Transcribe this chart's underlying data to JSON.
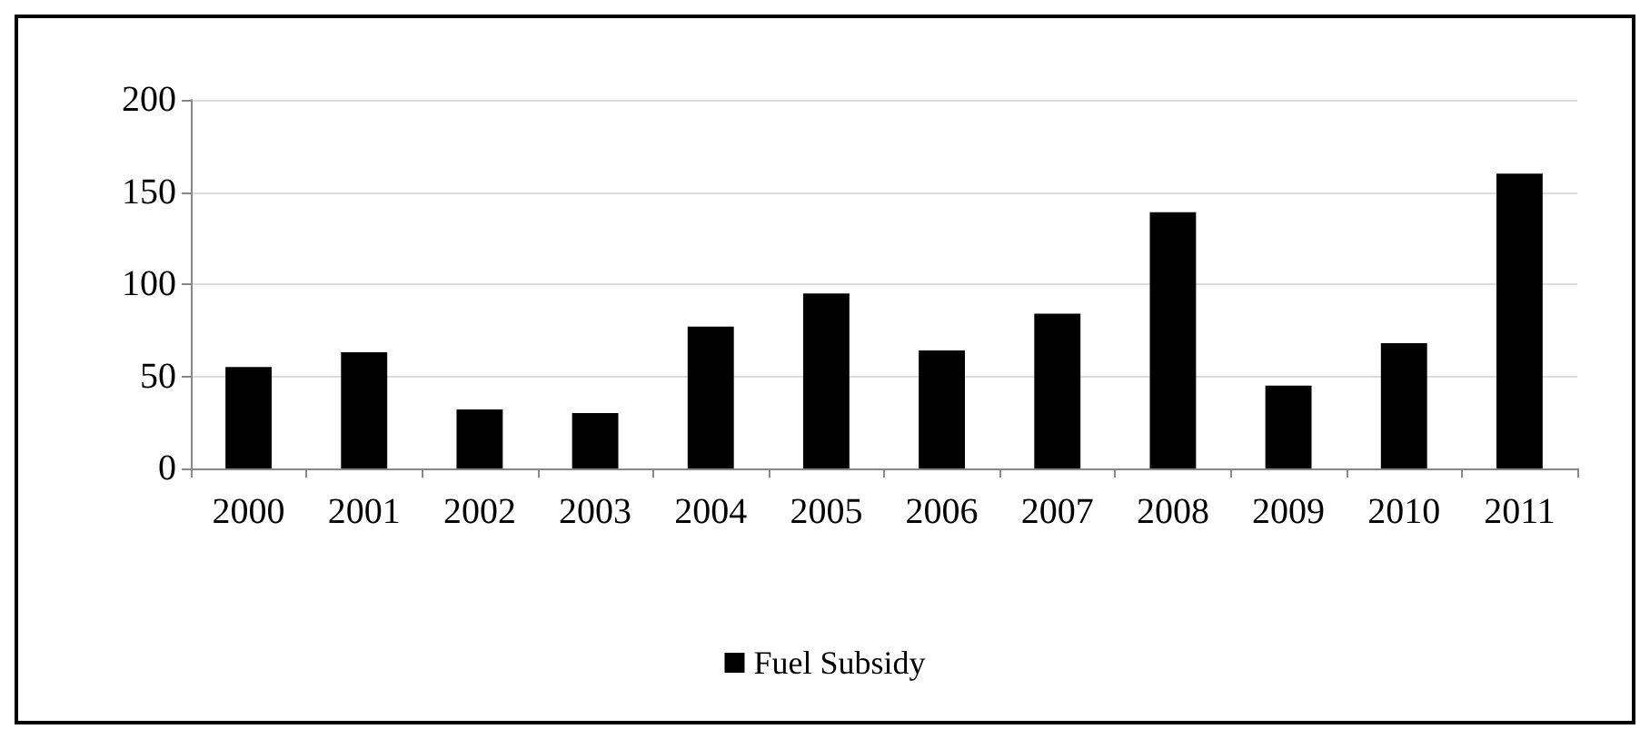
{
  "chart_data": {
    "type": "bar",
    "categories": [
      "2000",
      "2001",
      "2002",
      "2003",
      "2004",
      "2005",
      "2006",
      "2007",
      "2008",
      "2009",
      "2010",
      "2011"
    ],
    "series": [
      {
        "name": "Fuel Subsidy",
        "color": "#000000",
        "values": [
          55,
          63,
          32,
          30,
          77,
          95,
          64,
          84,
          139,
          45,
          68,
          160
        ]
      }
    ],
    "ylim": [
      0,
      200
    ],
    "yticks": [
      0,
      50,
      100,
      150,
      200
    ],
    "grid": "y",
    "legend": "bottom"
  }
}
